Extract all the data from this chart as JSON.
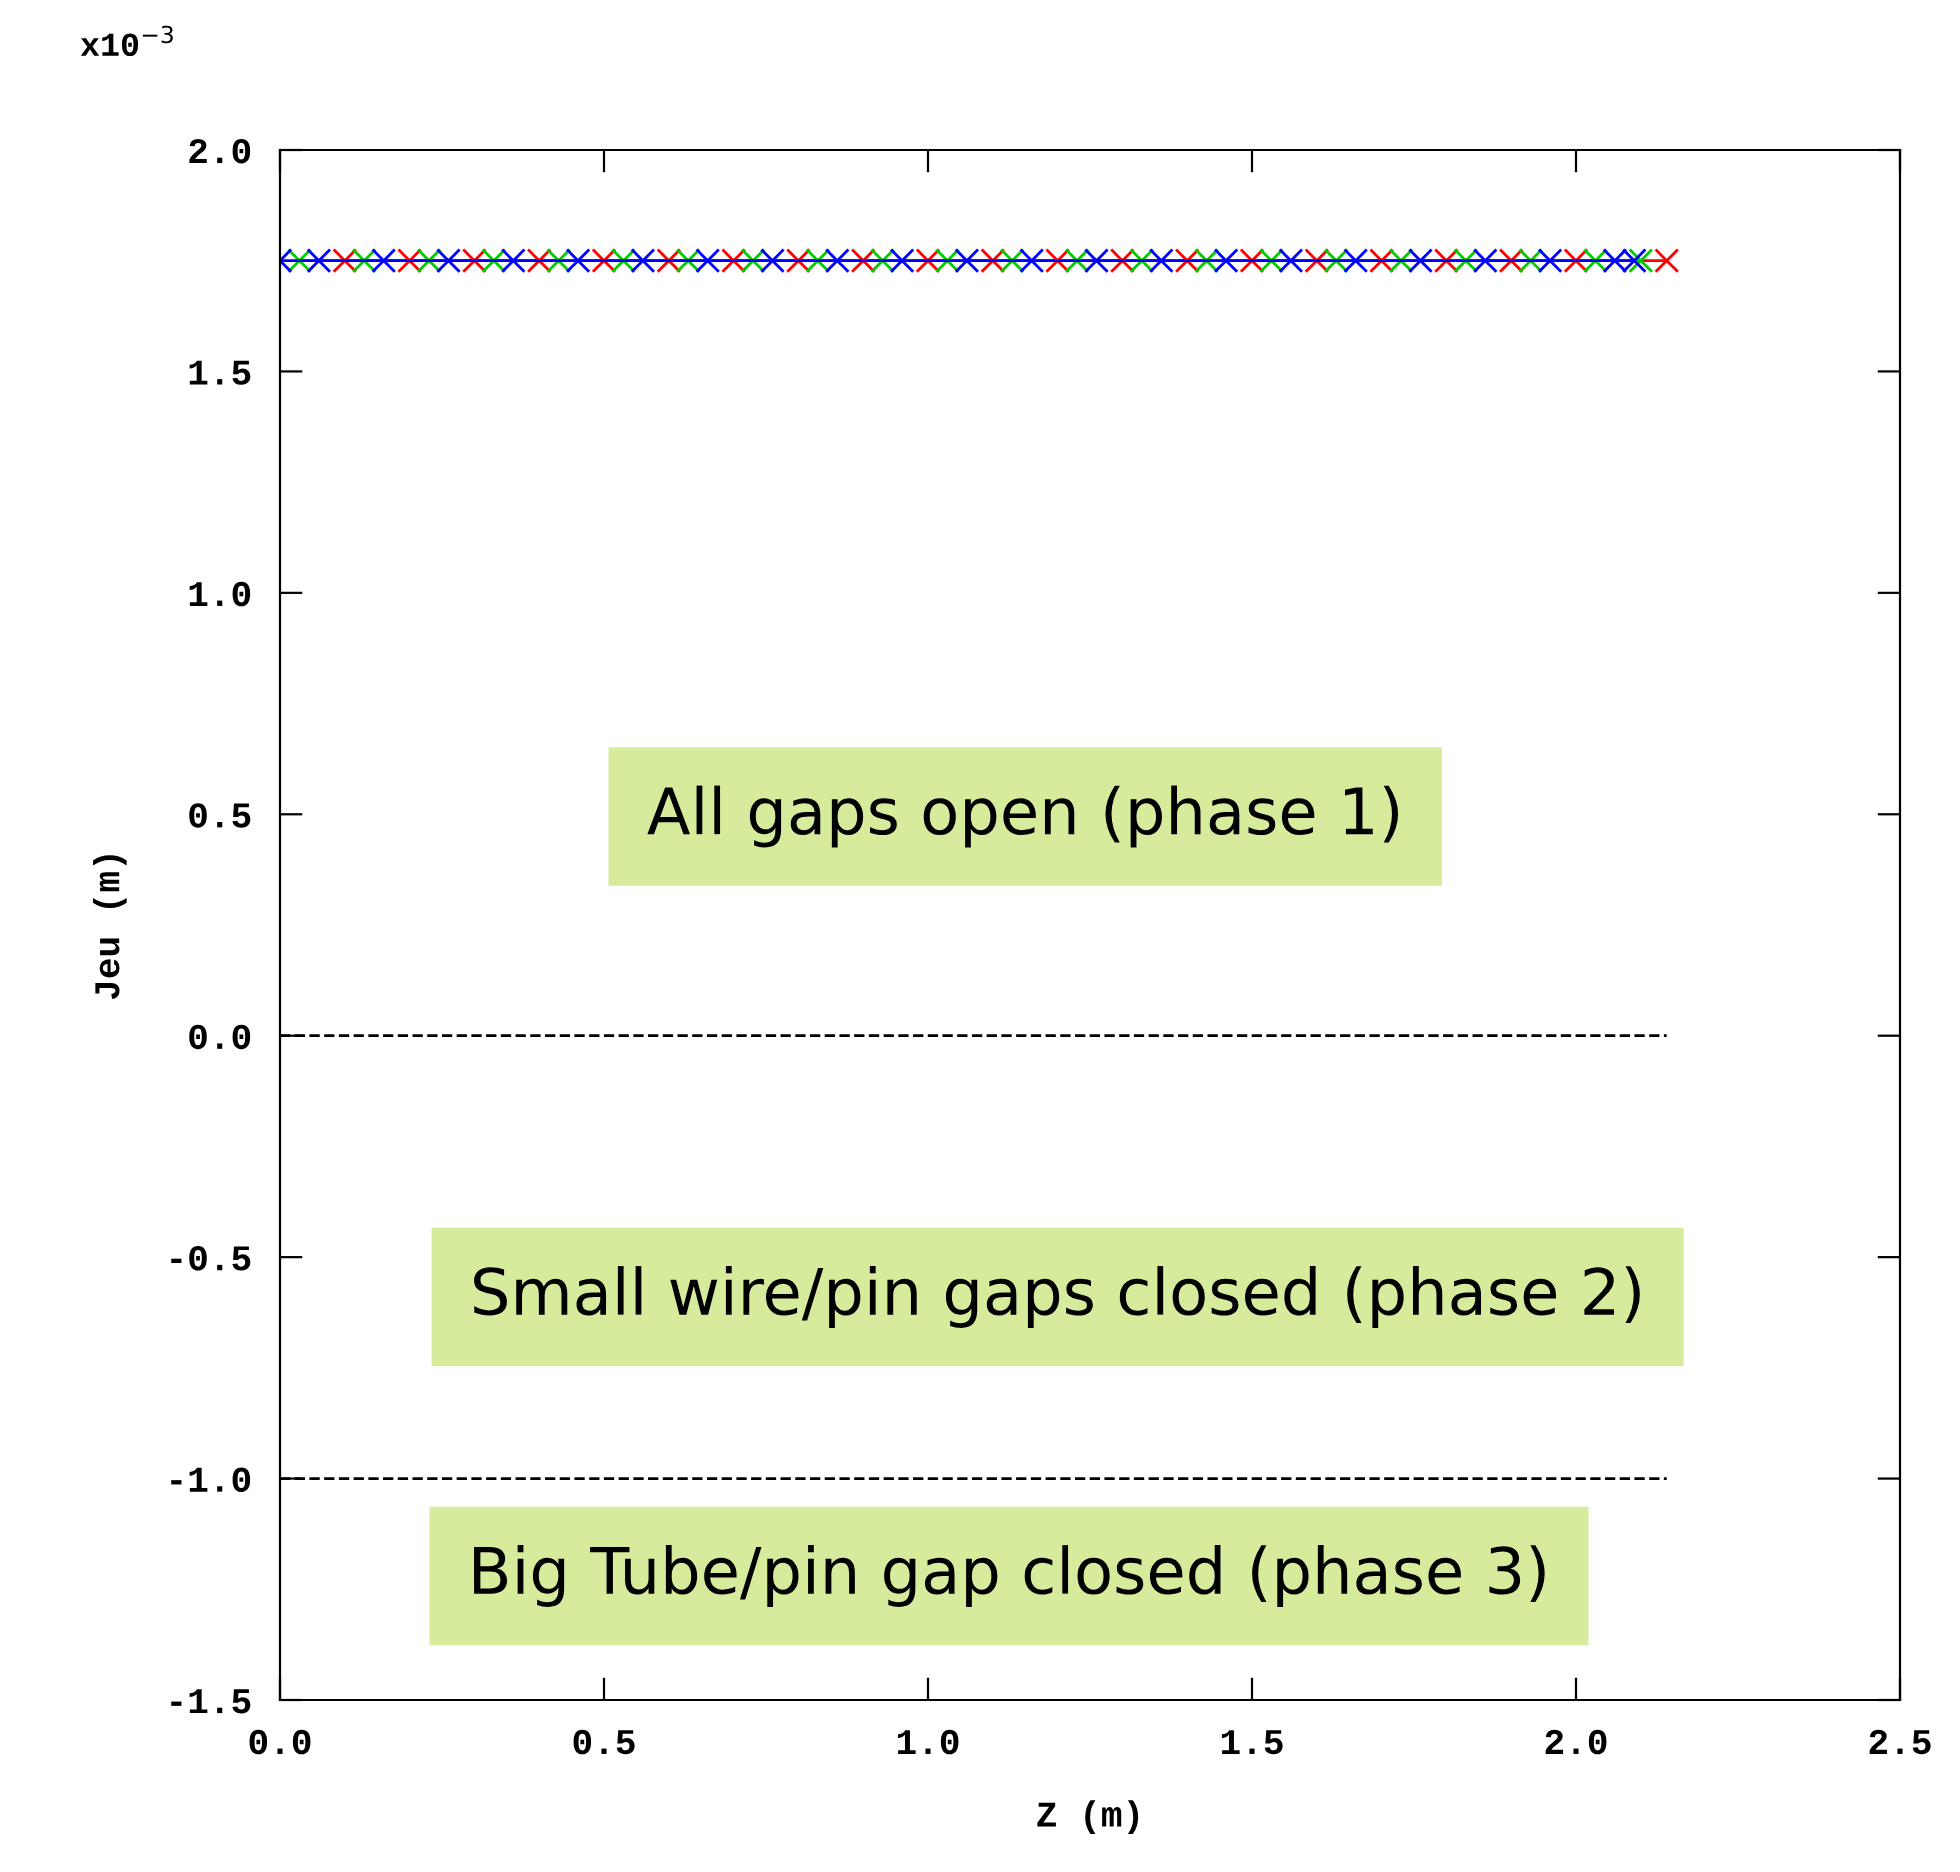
{
  "chart_data": {
    "type": "line",
    "xlabel": "Z (m)",
    "ylabel": "Jeu (m)",
    "xlim": [
      0,
      2.5
    ],
    "xticks": [
      {
        "value": 0,
        "label": "0.0"
      },
      0.5,
      {
        "value": 1,
        "label": "1.0"
      },
      1.5,
      {
        "value": 2,
        "label": "2.0"
      },
      2.5
    ],
    "ylim": [
      -1.5,
      2.0
    ],
    "yticks": [
      -1.5,
      {
        "value": -1,
        "label": "-1.0"
      },
      -0.5,
      {
        "value": 0,
        "label": "0.0"
      },
      0.5,
      {
        "value": 1,
        "label": "1.0"
      },
      1.5,
      {
        "value": 2,
        "label": "2.0"
      }
    ],
    "marker": "cross",
    "line_style": "solid",
    "grid": false,
    "legend": false,
    "series": [
      {
        "color": "#ff0000",
        "x": [
          0.1,
          0.2,
          0.3,
          0.4,
          0.5,
          0.6,
          0.7,
          0.8,
          0.9,
          1.0,
          1.1,
          1.2,
          1.3,
          1.4,
          1.5,
          1.6,
          1.7,
          1.8,
          1.9,
          2.0,
          2.14
        ],
        "values": [
          1.75,
          1.75,
          1.75,
          1.75,
          1.75,
          1.75,
          1.75,
          1.75,
          1.75,
          1.75,
          1.75,
          1.75,
          1.75,
          1.75,
          1.75,
          1.75,
          1.75,
          1.75,
          1.75,
          1.75,
          1.75
        ]
      },
      {
        "color": "#00cc00",
        "x": [
          0.03,
          0.13,
          0.23,
          0.33,
          0.43,
          0.53,
          0.63,
          0.73,
          0.83,
          0.93,
          1.03,
          1.13,
          1.23,
          1.33,
          1.43,
          1.53,
          1.63,
          1.73,
          1.83,
          1.93,
          2.03,
          2.1
        ],
        "values": [
          1.75,
          1.75,
          1.75,
          1.75,
          1.75,
          1.75,
          1.75,
          1.75,
          1.75,
          1.75,
          1.75,
          1.75,
          1.75,
          1.75,
          1.75,
          1.75,
          1.75,
          1.75,
          1.75,
          1.75,
          1.75,
          1.75
        ]
      },
      {
        "color": "#0000ff",
        "x": [
          0,
          0.06,
          0.16,
          0.26,
          0.36,
          0.46,
          0.56,
          0.66,
          0.76,
          0.86,
          0.96,
          1.06,
          1.16,
          1.26,
          1.36,
          1.46,
          1.56,
          1.66,
          1.76,
          1.86,
          1.96,
          2.06,
          2.09
        ],
        "values": [
          1.75,
          1.75,
          1.75,
          1.75,
          1.75,
          1.75,
          1.75,
          1.75,
          1.75,
          1.75,
          1.75,
          1.75,
          1.75,
          1.75,
          1.75,
          1.75,
          1.75,
          1.75,
          1.75,
          1.75,
          1.75,
          1.75,
          1.75
        ]
      }
    ],
    "ref_lines": [
      {
        "axis": "y",
        "value": 0,
        "color": "#000000",
        "line_style": "dashed"
      },
      {
        "axis": "y",
        "value": -1,
        "color": "#000000",
        "line_style": "dashed"
      }
    ],
    "annotations": [
      "x10$^{−3}$",
      "All gaps open (phase 1)",
      "Small wire/pin gaps closed (phase 2)",
      "Big Tube/pin gap closed (phase 3)"
    ]
  }
}
